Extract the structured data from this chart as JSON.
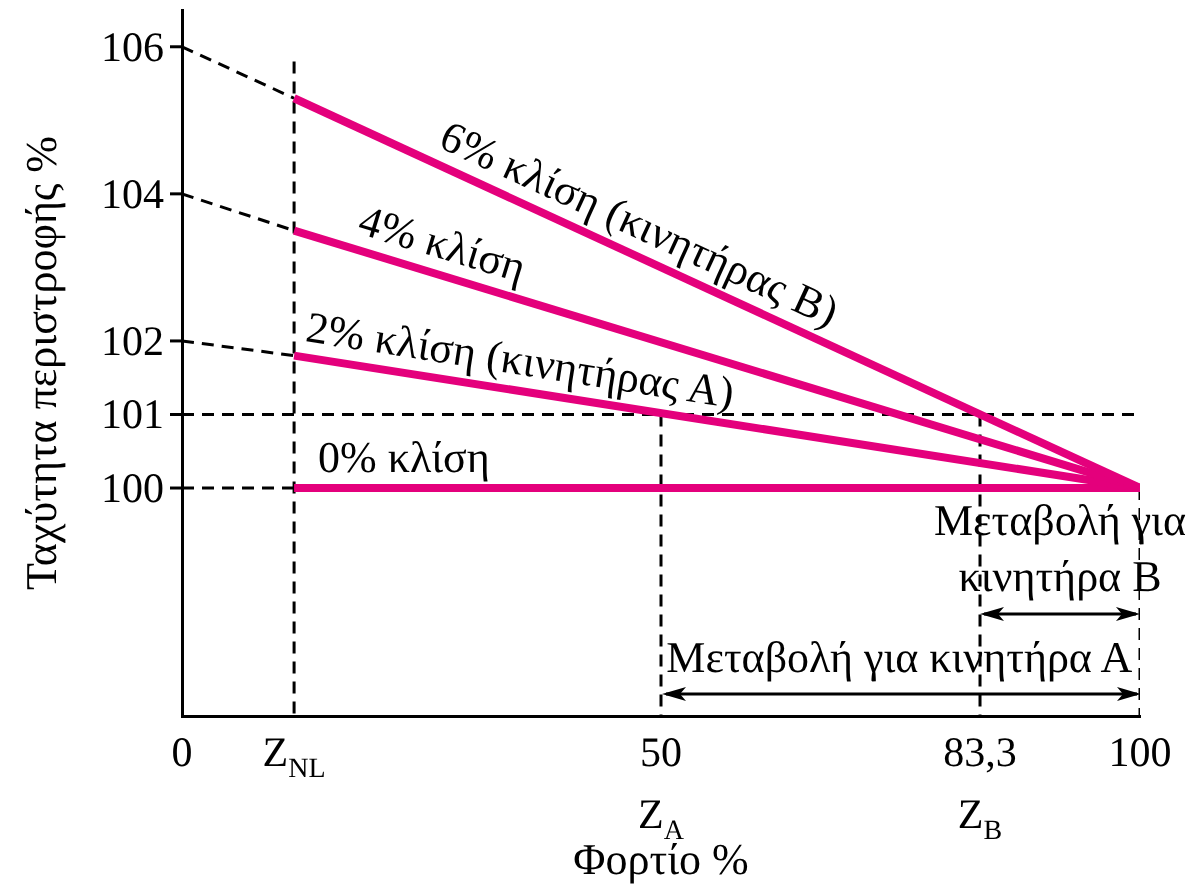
{
  "chart_data": {
    "type": "line",
    "xlabel": "Φορτίο %",
    "ylabel": "Ταχύτητα περιστροφής %",
    "xlim": [
      0,
      100
    ],
    "ylim": [
      96.9,
      106.5
    ],
    "xticks": [
      0,
      {
        "value": 11.7,
        "label": "Z$_{NL}$"
      },
      {
        "value": 50,
        "label": "50\nZ$_{A}$"
      },
      {
        "value": 83.3,
        "label": "83,3\nZ$_{B}$"
      },
      100
    ],
    "yticks": [
      100,
      101,
      102,
      104,
      106
    ],
    "grid": false,
    "legend": false,
    "marker": "none",
    "series": [
      {
        "name": "6% κλίση (κινητήρας Β)",
        "color": "#e4007c",
        "x": [
          11.7,
          100
        ],
        "values": [
          105.3,
          100
        ]
      },
      {
        "name": "4% κλίση",
        "color": "#e4007c",
        "x": [
          11.7,
          100
        ],
        "values": [
          103.5,
          100
        ]
      },
      {
        "name": "2% κλίση (κινητήρας Α)",
        "color": "#e4007c",
        "x": [
          11.7,
          100
        ],
        "values": [
          101.8,
          100
        ]
      },
      {
        "name": "0% κλίση",
        "color": "#e4007c",
        "x": [
          11.7,
          100
        ],
        "values": [
          100,
          100
        ]
      },
      {
        "color": "#000000",
        "line_style": "dashed",
        "x": [
          0,
          11.7
        ],
        "values": [
          106,
          105.3
        ]
      },
      {
        "color": "#000000",
        "line_style": "dashed",
        "x": [
          0,
          11.7
        ],
        "values": [
          104,
          103.5
        ]
      },
      {
        "color": "#000000",
        "line_style": "dashed",
        "x": [
          0,
          11.7
        ],
        "values": [
          102,
          101.8
        ]
      },
      {
        "color": "#000000",
        "line_style": "dashed",
        "x": [
          0,
          11.7
        ],
        "values": [
          100,
          100
        ]
      },
      {
        "color": "#000000",
        "line_style": "dashed",
        "x": [
          11.7,
          11.7
        ],
        "values": [
          105.8,
          96.9
        ]
      },
      {
        "color": "#000000",
        "line_style": "dashed",
        "x": [
          50,
          50
        ],
        "values": [
          101,
          96.9
        ]
      },
      {
        "color": "#000000",
        "line_style": "dashed",
        "x": [
          83.3,
          83.3
        ],
        "values": [
          101,
          96.9
        ]
      },
      {
        "color": "#000000",
        "line_style": "dashed",
        "x": [
          100,
          100
        ],
        "values": [
          100,
          96.9
        ]
      }
    ],
    "ref_lines": [
      {
        "axis": "y",
        "value": 101,
        "color": "#000000",
        "line_style": "dashed"
      }
    ],
    "annotations": [
      {
        "text": "Μεταβολή για κινητήρα Β",
        "x": 83.3,
        "y": 98.3
      },
      {
        "text": "Μεταβολή για κινητήρα Α",
        "x": 50,
        "y": 97.2
      }
    ]
  }
}
